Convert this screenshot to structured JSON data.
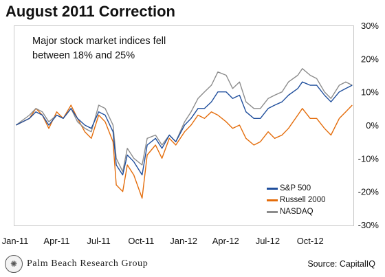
{
  "header": {
    "title": "August 2011 Correction"
  },
  "annotation": {
    "line1": "Major stock market indices fell",
    "line2": "between 18% and 25%"
  },
  "footer": {
    "logo_text": "Palm Beach Research Group",
    "logo_icon": "seal-icon",
    "source": "Source: CapitalIQ"
  },
  "chart_data": {
    "type": "line",
    "title": "August 2011 Correction",
    "xlabel": "",
    "ylabel": "",
    "x_tick_labels": [
      "Jan-11",
      "Apr-11",
      "Jul-11",
      "Oct-11",
      "Jan-12",
      "Apr-12",
      "Jul-12",
      "Oct-12"
    ],
    "y_tick_labels": [
      "30%",
      "20%",
      "10%",
      "0%",
      "-10%",
      "-20%",
      "-30%"
    ],
    "y_ticks": [
      30,
      20,
      10,
      0,
      -10,
      -20,
      -30
    ],
    "ylim": [
      -30,
      30
    ],
    "x_dates": [
      "2011-01-03",
      "2011-02-01",
      "2011-02-15",
      "2011-03-01",
      "2011-03-15",
      "2011-04-01",
      "2011-04-15",
      "2011-05-02",
      "2011-05-16",
      "2011-06-01",
      "2011-06-15",
      "2011-07-01",
      "2011-07-15",
      "2011-08-01",
      "2011-08-08",
      "2011-08-22",
      "2011-09-01",
      "2011-09-15",
      "2011-10-03",
      "2011-10-14",
      "2011-11-01",
      "2011-11-15",
      "2011-12-01",
      "2011-12-15",
      "2012-01-03",
      "2012-01-17",
      "2012-02-01",
      "2012-02-15",
      "2012-03-01",
      "2012-03-15",
      "2012-04-02",
      "2012-04-16",
      "2012-05-01",
      "2012-05-15",
      "2012-06-01",
      "2012-06-15",
      "2012-07-02",
      "2012-07-16",
      "2012-08-01",
      "2012-08-15",
      "2012-09-04",
      "2012-09-14",
      "2012-10-01",
      "2012-10-15",
      "2012-11-01",
      "2012-11-15",
      "2012-12-03",
      "2012-12-17",
      "2012-12-31"
    ],
    "series": [
      {
        "name": "S&P 500",
        "color": "#1f4e9c",
        "values": [
          0,
          2,
          4,
          3,
          0,
          3,
          2,
          5,
          2,
          0,
          -1,
          4,
          3,
          -2,
          -12,
          -15,
          -9,
          -11,
          -15,
          -6,
          -4,
          -7,
          -3,
          -5,
          0,
          2,
          5,
          5,
          7,
          10,
          10,
          8,
          9,
          4,
          2,
          2,
          5,
          6,
          7,
          9,
          11,
          13,
          12,
          12,
          9,
          7,
          10,
          11,
          12
        ]
      },
      {
        "name": "Russell 2000",
        "color": "#e46c0a",
        "values": [
          0,
          2,
          5,
          3,
          -1,
          4,
          2,
          6,
          2,
          -2,
          -4,
          3,
          1,
          -5,
          -18,
          -20,
          -12,
          -15,
          -22,
          -9,
          -6,
          -10,
          -4,
          -6,
          -2,
          0,
          3,
          2,
          4,
          3,
          1,
          -1,
          0,
          -4,
          -6,
          -5,
          -2,
          -4,
          -3,
          -1,
          3,
          5,
          2,
          2,
          -1,
          -3,
          2,
          4,
          6
        ]
      },
      {
        "name": "NASDAQ",
        "color": "#8c8c8c",
        "values": [
          0,
          3,
          5,
          4,
          1,
          3,
          2,
          5,
          1,
          -1,
          -2,
          6,
          5,
          0,
          -10,
          -14,
          -7,
          -10,
          -12,
          -4,
          -3,
          -6,
          -3,
          -5,
          1,
          4,
          8,
          10,
          12,
          16,
          15,
          11,
          13,
          7,
          5,
          5,
          8,
          9,
          10,
          13,
          15,
          17,
          15,
          14,
          10,
          8,
          12,
          13,
          12
        ]
      }
    ],
    "legend": {
      "position": "bottom-right",
      "entries": [
        "S&P 500",
        "Russell 2000",
        "NASDAQ"
      ]
    },
    "grid": false
  }
}
